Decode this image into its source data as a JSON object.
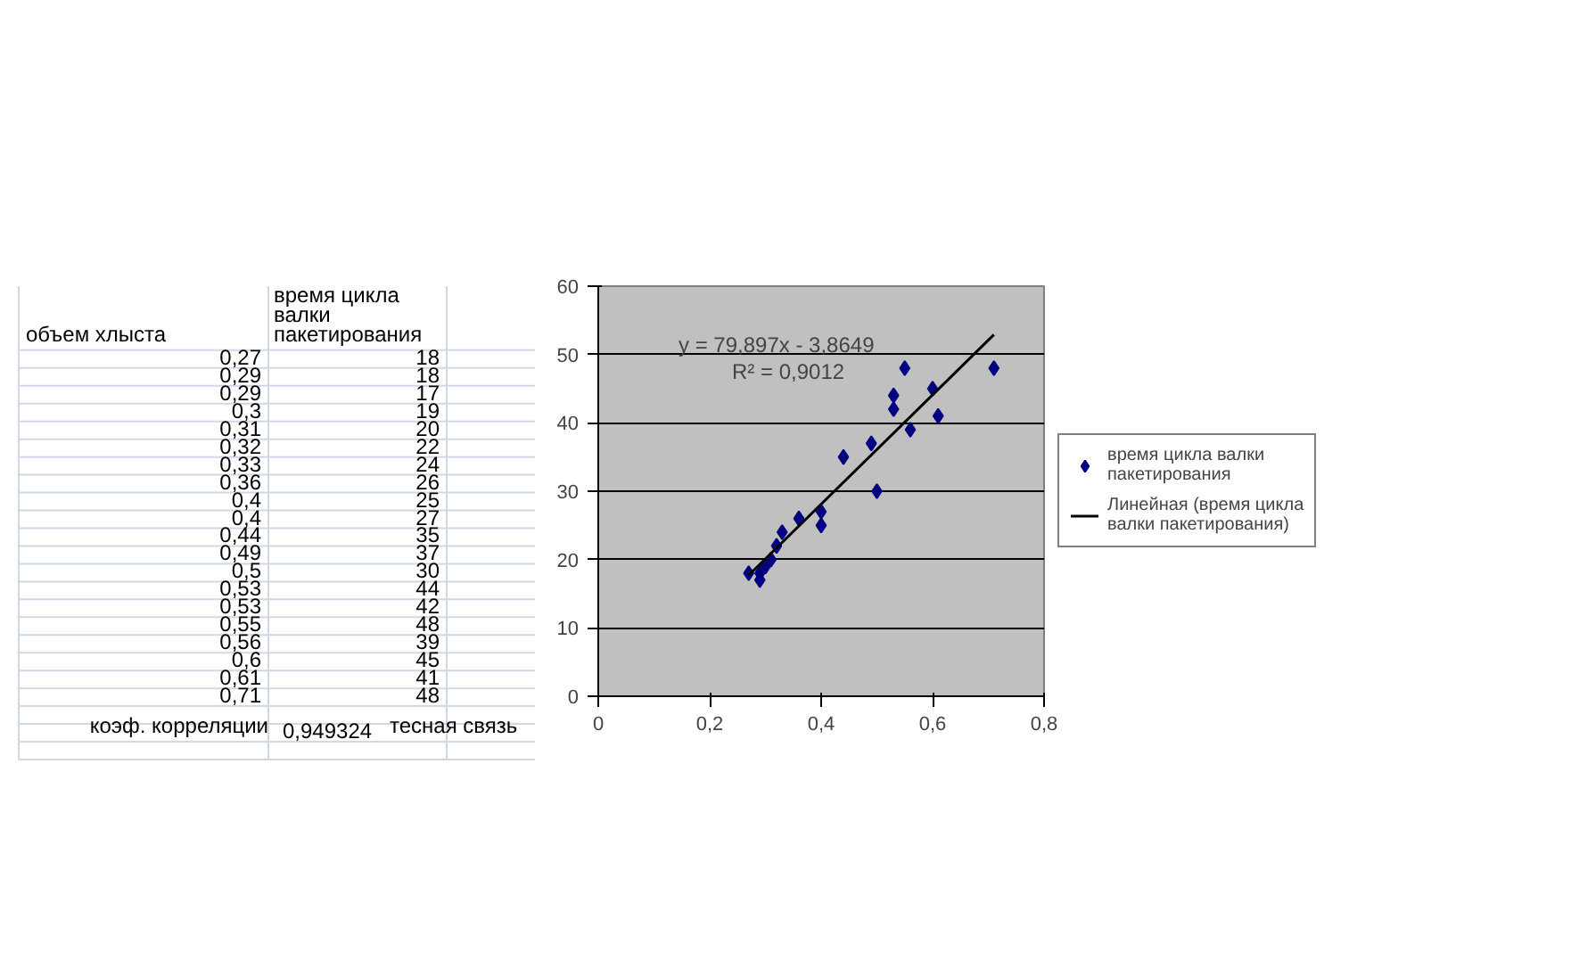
{
  "chart_data": {
    "type": "scatter",
    "x": [
      0.27,
      0.29,
      0.29,
      0.3,
      0.31,
      0.32,
      0.33,
      0.36,
      0.4,
      0.4,
      0.44,
      0.49,
      0.5,
      0.53,
      0.53,
      0.55,
      0.56,
      0.6,
      0.61,
      0.71
    ],
    "series": [
      {
        "name": "время цикла валки пакетирования",
        "color": "#000080",
        "values": [
          18,
          18,
          17,
          19,
          20,
          22,
          24,
          26,
          25,
          27,
          35,
          37,
          30,
          44,
          42,
          48,
          39,
          45,
          41,
          48
        ]
      },
      {
        "name": "Линейная (время цикла валки пакетирования)",
        "type": "line",
        "marker": "none",
        "color": "#000000",
        "x": [
          0.27,
          0.71
        ],
        "values": [
          17.7,
          52.9
        ]
      }
    ],
    "xlim": [
      0,
      0.8
    ],
    "xticks": [
      0,
      {
        "value": 0.2,
        "label": "0,2"
      },
      {
        "value": 0.4,
        "label": "0,4"
      },
      {
        "value": 0.6,
        "label": "0,6"
      },
      {
        "value": 0.8,
        "label": "0,8"
      }
    ],
    "ylim": [
      0,
      60
    ],
    "yticks": [
      0,
      10,
      20,
      30,
      40,
      50,
      60
    ],
    "grid": "y",
    "legend": "right",
    "marker": "diamond",
    "annotations": [
      "y = 79,897x - 3,8649",
      "R² = 0,9012",
      "объем хлыста",
      "время цикла валки пакетирования",
      "коэф. корреляции",
      "0,949324",
      "тесная связь",
      "0,27",
      "0,29",
      "0,29",
      "0,3",
      "0,31",
      "0,32",
      "0,33",
      "0,36",
      "0,4",
      "0,4",
      "0,44",
      "0,49",
      "0,5",
      "0,53",
      "0,53",
      "0,55",
      "0,56",
      "0,6",
      "0,61",
      "0,71",
      "18",
      "18",
      "17",
      "19",
      "20",
      "22",
      "24",
      "26",
      "25",
      "27",
      "35",
      "37",
      "30",
      "44",
      "42",
      "48",
      "39",
      "45",
      "41",
      "48"
    ]
  }
}
